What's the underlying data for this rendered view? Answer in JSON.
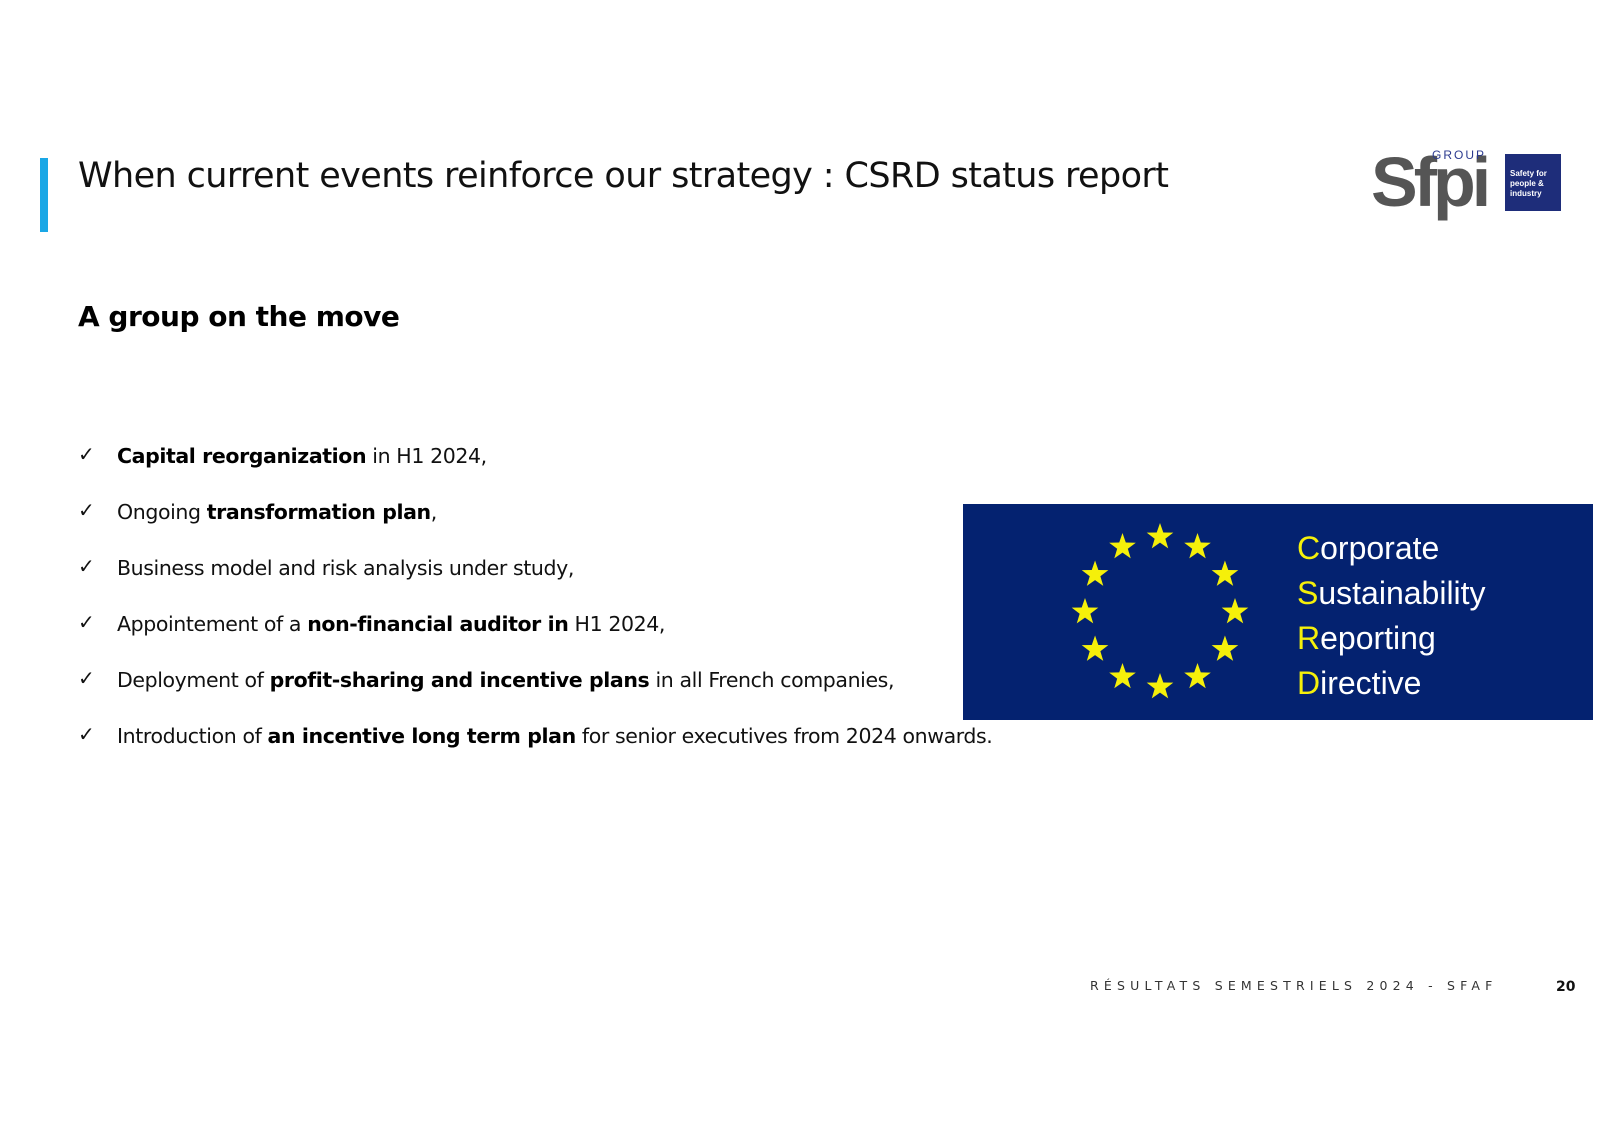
{
  "slide": {
    "title": "When current events reinforce our strategy : CSRD status report",
    "subtitle": "A group on the move",
    "bullets": [
      {
        "parts": [
          {
            "text": "Capital reorganization",
            "bold": true
          },
          {
            "text": " in H1 2024,",
            "bold": false
          }
        ]
      },
      {
        "parts": [
          {
            "text": "Ongoing ",
            "bold": false
          },
          {
            "text": "transformation plan",
            "bold": true
          },
          {
            "text": ",",
            "bold": false
          }
        ]
      },
      {
        "parts": [
          {
            "text": "Business model and risk analysis under study,",
            "bold": false
          }
        ]
      },
      {
        "parts": [
          {
            "text": "Appointement of a ",
            "bold": false
          },
          {
            "text": "non-financial auditor in",
            "bold": true
          },
          {
            "text": " H1 2024,",
            "bold": false
          }
        ]
      },
      {
        "parts": [
          {
            "text": "Deployment of ",
            "bold": false
          },
          {
            "text": "profit-sharing and incentive plans",
            "bold": true
          },
          {
            "text": " in all French companies,",
            "bold": false
          }
        ]
      },
      {
        "parts": [
          {
            "text": "Introduction of ",
            "bold": false
          },
          {
            "text": "an incentive long term plan",
            "bold": true
          },
          {
            "text": " for senior executives from 2024 onwards.",
            "bold": false
          }
        ]
      }
    ],
    "bullet_icon": "checkmark-icon",
    "bullet_glyph": "✓"
  },
  "logo": {
    "word": "Sfpi",
    "group": "GROUP",
    "tagline_lines": [
      "Safety for",
      "people &",
      "industry"
    ],
    "colors": {
      "word": "#555555",
      "box": "#1e2d7a"
    }
  },
  "csrd_banner": {
    "lines": [
      {
        "initial": "C",
        "rest": "orporate"
      },
      {
        "initial": "S",
        "rest": "ustainability"
      },
      {
        "initial": "R",
        "rest": "eporting"
      },
      {
        "initial": "D",
        "rest": "irective"
      }
    ],
    "star_count": 12,
    "colors": {
      "background": "#042270",
      "stars": "#f5f00a",
      "initials": "#f5f00a",
      "text": "#ffffff"
    }
  },
  "footer": {
    "text": "RÉSULTATS SEMESTRIELS 2024 - SFAF",
    "page_number": "20"
  },
  "accent_color": "#1aa7e6"
}
